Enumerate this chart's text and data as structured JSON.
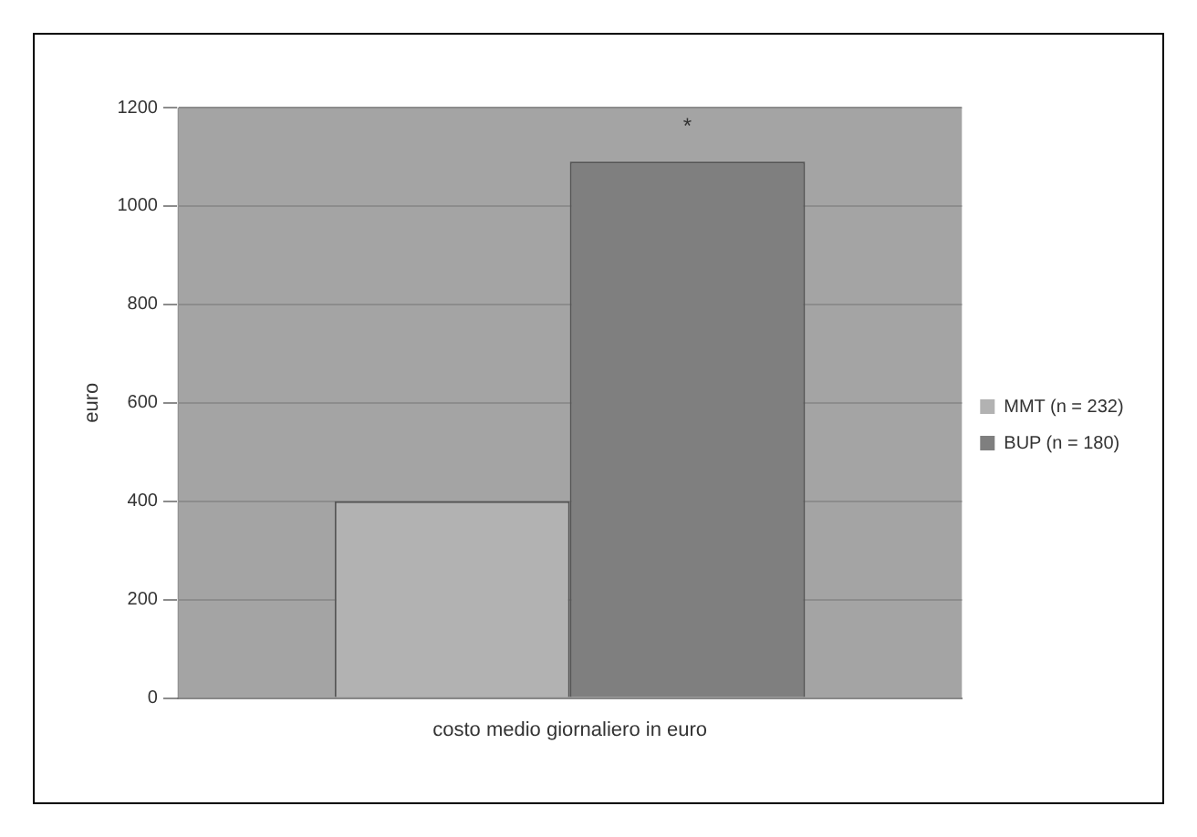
{
  "chart_data": {
    "type": "bar",
    "categories": [
      "costo medio giornaliero in euro"
    ],
    "ylabel": "euro",
    "series": [
      {
        "name": "MMT (n = 232)",
        "color": "#b2b2b2",
        "values": [
          400
        ]
      },
      {
        "name": "BUP (n = 180)",
        "color": "#7f7f7f",
        "values": [
          1090
        ]
      }
    ],
    "ylim": [
      0,
      1200
    ],
    "yticks": [
      0,
      200,
      400,
      600,
      800,
      1000,
      1200
    ],
    "grid": "y",
    "legend": "right",
    "annotations": [
      "*"
    ]
  }
}
